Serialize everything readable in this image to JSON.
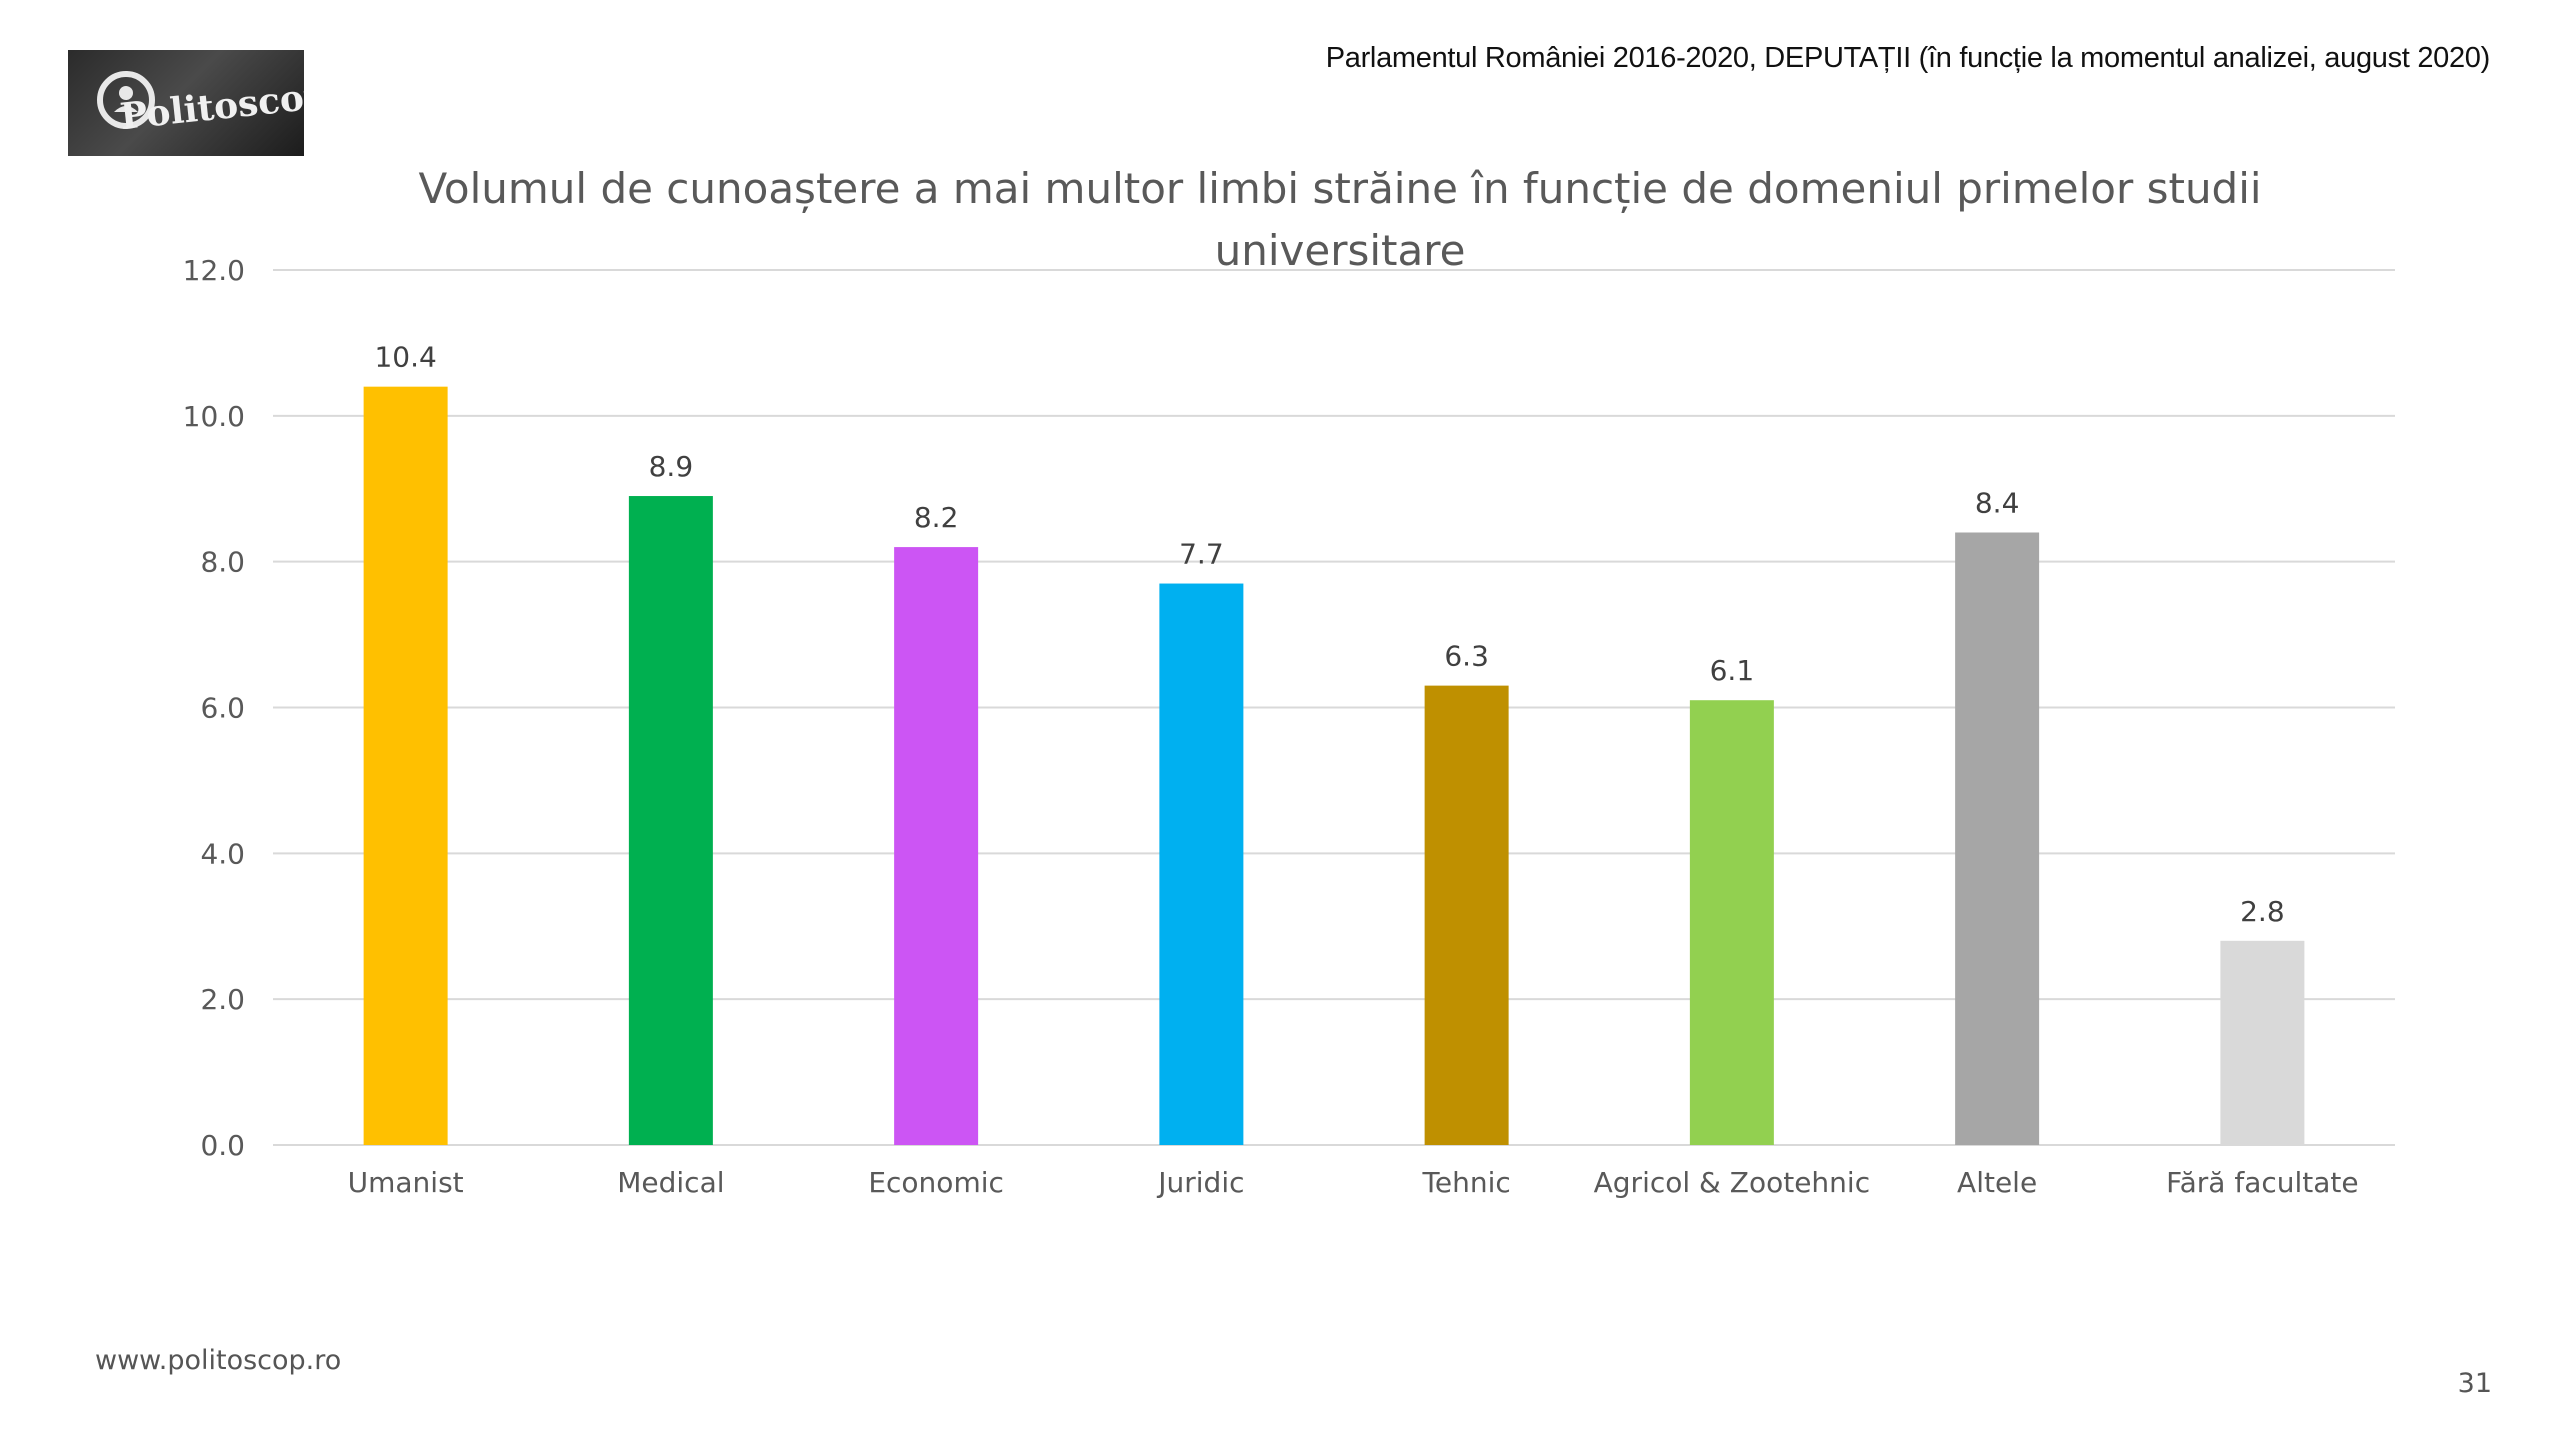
{
  "header": {
    "logo_text": "Politoscop",
    "subtitle": "Parlamentul României 2016-2020, DEPUTAȚII (în funcție la momentul analizei, august 2020)"
  },
  "footer": {
    "url": "www.politoscop.ro",
    "page_number": "31"
  },
  "chart_data": {
    "type": "bar",
    "title_lines": [
      "Volumul de cunoaștere a mai multor limbi străine în funcție de  domeniul primelor studii",
      "universitare"
    ],
    "categories": [
      "Umanist",
      "Medical",
      "Economic",
      "Juridic",
      "Tehnic",
      "Agricol & Zootehnic",
      "Altele",
      "Fără facultate"
    ],
    "values": [
      10.4,
      8.9,
      8.2,
      7.7,
      6.3,
      6.1,
      8.4,
      2.8
    ],
    "value_labels": [
      "10.4",
      "8.9",
      "8.2",
      "7.7",
      "6.3",
      "6.1",
      "8.4",
      "2.8"
    ],
    "colors": [
      "#FFC000",
      "#00B050",
      "#CC55F4",
      "#00B0F0",
      "#BF9000",
      "#92D050",
      "#A6A6A6",
      "#D9D9D9"
    ],
    "y_ticks": [
      "0.0",
      "2.0",
      "4.0",
      "6.0",
      "8.0",
      "10.0",
      "12.0"
    ],
    "ylim": [
      0,
      12
    ],
    "grid": true,
    "legend": "none"
  }
}
